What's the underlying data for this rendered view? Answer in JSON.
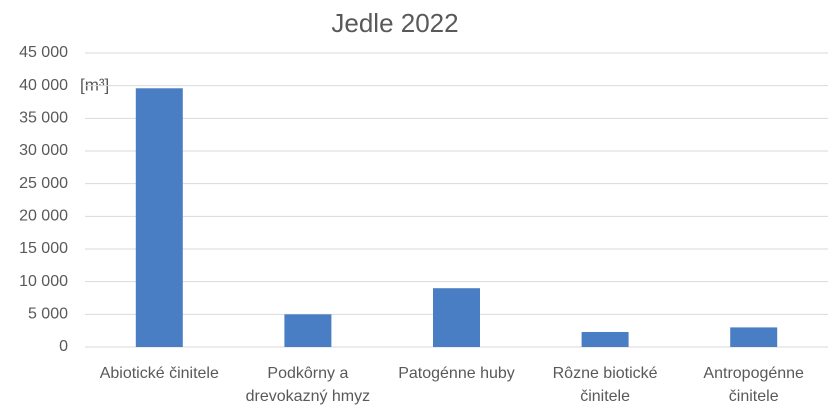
{
  "chart_data": {
    "type": "bar",
    "title": "Jedle 2022",
    "y_label": "[m³]",
    "categories": [
      "Abiotické činitele",
      "Podkôrny a drevokazný hmyz",
      "Patogénne huby",
      "Rôzne biotické činitele",
      "Antropogénne činitele"
    ],
    "values": [
      39600,
      5000,
      9000,
      2300,
      3000
    ],
    "color": "#4a7ec4",
    "ylim": [
      0,
      45000
    ],
    "yticks": [
      0,
      {
        "value": 5000,
        "label": "5 000"
      },
      {
        "value": 10000,
        "label": "10 000"
      },
      {
        "value": 15000,
        "label": "15 000"
      },
      {
        "value": 20000,
        "label": "20 000"
      },
      {
        "value": 25000,
        "label": "25 000"
      },
      {
        "value": 30000,
        "label": "30 000"
      },
      {
        "value": 35000,
        "label": "35 000"
      },
      {
        "value": 40000,
        "label": "40 000"
      },
      {
        "value": 45000,
        "label": "45 000"
      }
    ],
    "grid": true
  }
}
